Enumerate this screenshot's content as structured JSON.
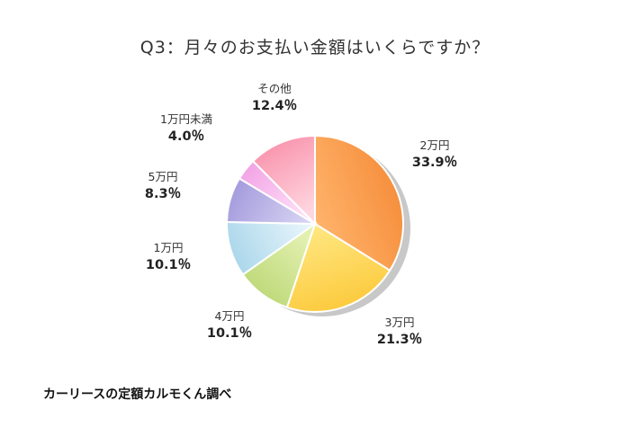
{
  "title": "Q3：月々のお支払い金額はいくらですか？",
  "credit": "カーリースの定額カルモくん調べ",
  "chart_data": {
    "type": "pie",
    "title": "Q3：月々のお支払い金額はいくらですか？",
    "slices": [
      {
        "label": "2万円",
        "value": 33.9,
        "value_label": "33.9％",
        "colors": [
          "#ffb36b",
          "#f58d3a"
        ]
      },
      {
        "label": "3万円",
        "value": 21.3,
        "value_label": "21.3％",
        "colors": [
          "#ffe680",
          "#fcc93a"
        ]
      },
      {
        "label": "4万円",
        "value": 10.1,
        "value_label": "10.1％",
        "colors": [
          "#e3f0b0",
          "#bcd877"
        ]
      },
      {
        "label": "1万円",
        "value": 10.1,
        "value_label": "10.1％",
        "colors": [
          "#e6f4fb",
          "#a9d6ea"
        ]
      },
      {
        "label": "5万円",
        "value": 8.3,
        "value_label": "8.3％",
        "colors": [
          "#d6d2f2",
          "#a49bdd"
        ]
      },
      {
        "label": "1万円未満",
        "value": 4.0,
        "value_label": "4.0％",
        "colors": [
          "#fde0f8",
          "#f3a7e6"
        ]
      },
      {
        "label": "その他",
        "value": 12.4,
        "value_label": "12.4％",
        "colors": [
          "#ffd6e0",
          "#f992ac"
        ]
      }
    ]
  }
}
